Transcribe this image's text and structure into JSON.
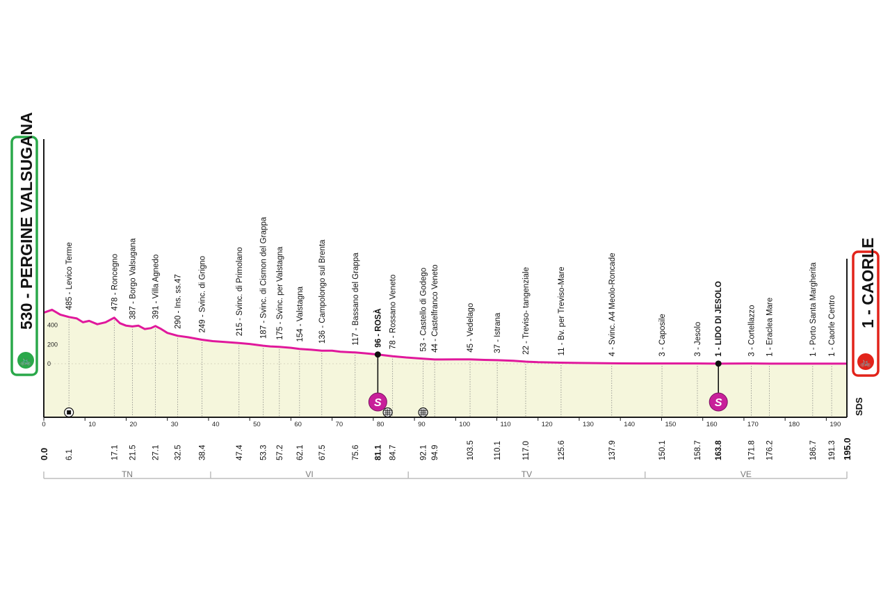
{
  "start_label": "530 - PERGINE VALSUGANA",
  "finish_label": "1 - CAORLE",
  "brand_mark": "SDS",
  "colors": {
    "profile_line": "#e0189c",
    "profile_fill": "#f5f6dc",
    "start_box": "#2aa84a",
    "finish_box": "#e2231a",
    "sprint_badge": "#c8209a",
    "axis": "#1a1a1a"
  },
  "icons": {
    "start": "cyclist-start-icon",
    "finish": "cyclist-finish-icon",
    "sprint": "sprint-s-icon",
    "feed": "feed-zone-icon",
    "gps": "gps-marker-icon"
  },
  "chart_data": {
    "type": "area",
    "xlabel": "",
    "ylabel": "",
    "xlim": [
      0,
      195
    ],
    "ylim": [
      -400,
      700
    ],
    "x_ticks": [
      0,
      10,
      20,
      30,
      40,
      50,
      60,
      70,
      80,
      90,
      100,
      110,
      120,
      130,
      140,
      150,
      160,
      170,
      180,
      190
    ],
    "y_ticks": [
      0,
      200,
      400
    ],
    "profile": [
      [
        0,
        530
      ],
      [
        2,
        560
      ],
      [
        4,
        510
      ],
      [
        6.1,
        485
      ],
      [
        8,
        470
      ],
      [
        9.5,
        430
      ],
      [
        11,
        445
      ],
      [
        13,
        410
      ],
      [
        15,
        430
      ],
      [
        17.1,
        478
      ],
      [
        18.5,
        420
      ],
      [
        20,
        395
      ],
      [
        21.5,
        387
      ],
      [
        23,
        395
      ],
      [
        24.5,
        360
      ],
      [
        26,
        370
      ],
      [
        27.1,
        391
      ],
      [
        28.5,
        360
      ],
      [
        30,
        320
      ],
      [
        32.5,
        290
      ],
      [
        35,
        275
      ],
      [
        38.4,
        249
      ],
      [
        41,
        235
      ],
      [
        44,
        225
      ],
      [
        47.4,
        215
      ],
      [
        50,
        205
      ],
      [
        53.3,
        187
      ],
      [
        55,
        180
      ],
      [
        57.2,
        175
      ],
      [
        60,
        165
      ],
      [
        62.1,
        154
      ],
      [
        65,
        145
      ],
      [
        67.5,
        136
      ],
      [
        70,
        135
      ],
      [
        72,
        125
      ],
      [
        75.6,
        117
      ],
      [
        78,
        108
      ],
      [
        81.1,
        96
      ],
      [
        84.7,
        78
      ],
      [
        88,
        65
      ],
      [
        92.1,
        53
      ],
      [
        94.9,
        44
      ],
      [
        100,
        45
      ],
      [
        103.5,
        45
      ],
      [
        107,
        40
      ],
      [
        110.1,
        37
      ],
      [
        114,
        30
      ],
      [
        117,
        22
      ],
      [
        120,
        16
      ],
      [
        125.6,
        11
      ],
      [
        130,
        8
      ],
      [
        137.9,
        4
      ],
      [
        145,
        3
      ],
      [
        150.1,
        3
      ],
      [
        155,
        3
      ],
      [
        158.7,
        3
      ],
      [
        163.8,
        1
      ],
      [
        167,
        2
      ],
      [
        171.8,
        3
      ],
      [
        176.2,
        1
      ],
      [
        180,
        1
      ],
      [
        186.7,
        1
      ],
      [
        191.3,
        1
      ],
      [
        195,
        1
      ]
    ],
    "waypoints": [
      {
        "km": 6.1,
        "km_label": "6.1",
        "alt": 485,
        "name": "485 - Levico Terme",
        "bold": false
      },
      {
        "km": 17.1,
        "km_label": "17.1",
        "alt": 478,
        "name": "478 - Roncegno",
        "bold": false
      },
      {
        "km": 21.5,
        "km_label": "21.5",
        "alt": 387,
        "name": "387 - Borgo Valsugana",
        "bold": false
      },
      {
        "km": 27.1,
        "km_label": "27.1",
        "alt": 391,
        "name": "391 - Villa Agnedo",
        "bold": false
      },
      {
        "km": 32.5,
        "km_label": "32.5",
        "alt": 290,
        "name": "290 - Ins. ss.47",
        "bold": false
      },
      {
        "km": 38.4,
        "km_label": "38.4",
        "alt": 249,
        "name": "249 - Svinc. di Grigno",
        "bold": false
      },
      {
        "km": 47.4,
        "km_label": "47.4",
        "alt": 215,
        "name": "215 - Svinc. di Primolano",
        "bold": false
      },
      {
        "km": 53.3,
        "km_label": "53.3",
        "alt": 187,
        "name": "187 - Svinc. di Cismon del Grappa",
        "bold": false
      },
      {
        "km": 57.2,
        "km_label": "57.2",
        "alt": 175,
        "name": "175 - Svinc. per Valstagna",
        "bold": false
      },
      {
        "km": 62.1,
        "km_label": "62.1",
        "alt": 154,
        "name": "154 - Valstagna",
        "bold": false
      },
      {
        "km": 67.5,
        "km_label": "67.5",
        "alt": 136,
        "name": "136 - Campolongo sul Brenta",
        "bold": false
      },
      {
        "km": 75.6,
        "km_label": "75.6",
        "alt": 117,
        "name": "117 - Bassano del Grappa",
        "bold": false
      },
      {
        "km": 81.1,
        "km_label": "81.1",
        "alt": 96,
        "name": "96 - ROSÀ",
        "bold": true
      },
      {
        "km": 84.7,
        "km_label": "84.7",
        "alt": 78,
        "name": "78 - Rossano Veneto",
        "bold": false
      },
      {
        "km": 92.1,
        "km_label": "92.1",
        "alt": 53,
        "name": "53 - Castello di Godego",
        "bold": false
      },
      {
        "km": 94.9,
        "km_label": "94.9",
        "alt": 44,
        "name": "44 - Castelfranco Veneto",
        "bold": false
      },
      {
        "km": 103.5,
        "km_label": "103.5",
        "alt": 45,
        "name": "45 - Vedelago",
        "bold": false
      },
      {
        "km": 110.1,
        "km_label": "110.1",
        "alt": 37,
        "name": "37 - Istrana",
        "bold": false
      },
      {
        "km": 117.0,
        "km_label": "117.0",
        "alt": 22,
        "name": "22 - Treviso- tangenziale",
        "bold": false
      },
      {
        "km": 125.6,
        "km_label": "125.6",
        "alt": 11,
        "name": "11 - Bv. per Treviso-Mare",
        "bold": false
      },
      {
        "km": 137.9,
        "km_label": "137.9",
        "alt": 4,
        "name": "4 - Svinc. A4 Meolo-Roncade",
        "bold": false
      },
      {
        "km": 150.1,
        "km_label": "150.1",
        "alt": 3,
        "name": "3 - Caposile",
        "bold": false
      },
      {
        "km": 158.7,
        "km_label": "158.7",
        "alt": 3,
        "name": "3 - Jesolo",
        "bold": false
      },
      {
        "km": 163.8,
        "km_label": "163.8",
        "alt": 1,
        "name": "1 - LIDO DI JESOLO",
        "bold": true
      },
      {
        "km": 171.8,
        "km_label": "171.8",
        "alt": 3,
        "name": "3 - Cortellazzo",
        "bold": false
      },
      {
        "km": 176.2,
        "km_label": "176.2",
        "alt": 1,
        "name": "1 - Eraclea Mare",
        "bold": false
      },
      {
        "km": 186.7,
        "km_label": "186.7",
        "alt": 1,
        "name": "1 - Porto Santa Margherita",
        "bold": false
      },
      {
        "km": 191.3,
        "km_label": "191.3",
        "alt": 1,
        "name": "1 - Caorle Centro",
        "bold": false
      }
    ],
    "start_km_label": "0.0",
    "finish_km_label": "195.0",
    "sprints": [
      {
        "km": 81.1,
        "alt": 96
      },
      {
        "km": 163.8,
        "alt": 1
      }
    ],
    "feed_zones": [
      {
        "km": 6.1
      }
    ],
    "gps_points": [
      {
        "km": 83.5
      },
      {
        "km": 92.1
      }
    ],
    "provinces": [
      {
        "label": "TN",
        "from": 0,
        "to": 40.5
      },
      {
        "label": "VI",
        "from": 40.5,
        "to": 88.5
      },
      {
        "label": "TV",
        "from": 88.5,
        "to": 146
      },
      {
        "label": "VE",
        "from": 146,
        "to": 195
      }
    ]
  }
}
